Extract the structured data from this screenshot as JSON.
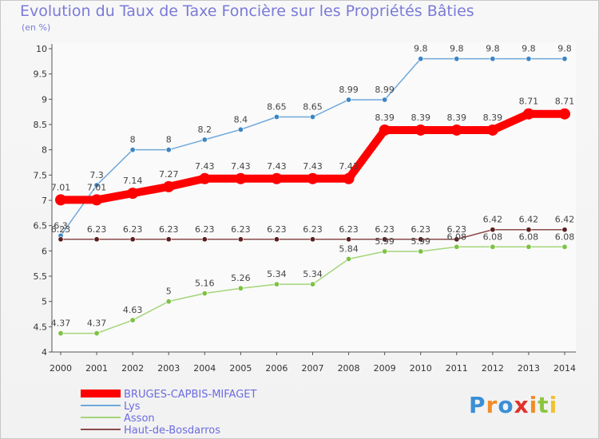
{
  "title": "Evolution du Taux de Taxe Foncière sur les Propriétés Bâties",
  "subtitle": "(en %)",
  "logo": {
    "text": "Proxiti",
    "colors": [
      "#3a8fd6",
      "#f28c28",
      "#3a8fd6",
      "#e0312a",
      "#f28c28",
      "#8cc63f",
      "#f2c12e"
    ]
  },
  "chart_data": {
    "type": "line",
    "title": "Evolution du Taux de Taxe Foncière sur les Propriétés Bâties",
    "ylabel": "(en %)",
    "xlabel": "",
    "ylim": [
      4,
      10
    ],
    "yticks": [
      "4",
      "4.5",
      "5",
      "5.5",
      "6",
      "6.5",
      "7",
      "7.5",
      "8",
      "8.5",
      "9",
      "9.5",
      "10"
    ],
    "x": [
      "2000",
      "2001",
      "2002",
      "2003",
      "2004",
      "2005",
      "2006",
      "2007",
      "2008",
      "2009",
      "2010",
      "2011",
      "2012",
      "2013",
      "2014"
    ],
    "series": [
      {
        "name": "BRUGES-CAPBIS-MIFAGET",
        "color": "#ff0000",
        "thick": true,
        "values": [
          7.01,
          7.01,
          7.14,
          7.27,
          7.43,
          7.43,
          7.43,
          7.43,
          7.43,
          8.39,
          8.39,
          8.39,
          8.39,
          8.71,
          8.71
        ],
        "labels": [
          "7.01",
          "7.01",
          "7.14",
          "7.27",
          "7.43",
          "7.43",
          "7.43",
          "7.43",
          "7.43",
          "8.39",
          "8.39",
          "8.39",
          "8.39",
          "8.71",
          "8.71"
        ]
      },
      {
        "name": "Lys",
        "color": "#6fa8dc",
        "dot": "#3d85c6",
        "values": [
          6.3,
          7.3,
          8,
          8,
          8.2,
          8.4,
          8.65,
          8.65,
          8.99,
          8.99,
          9.8,
          9.8,
          9.8,
          9.8,
          9.8
        ],
        "labels": [
          "6.3",
          "7.3",
          "8",
          "8",
          "8.2",
          "8.4",
          "8.65",
          "8.65",
          "8.99",
          "8.99",
          "9.8",
          "9.8",
          "9.8",
          "9.8",
          "9.8"
        ]
      },
      {
        "name": "Asson",
        "color": "#a4d67a",
        "dot": "#7cc242",
        "values": [
          4.37,
          4.37,
          4.63,
          5,
          5.16,
          5.26,
          5.34,
          5.34,
          5.84,
          5.99,
          5.99,
          6.08,
          6.08,
          6.08,
          6.08
        ],
        "labels": [
          "4.37",
          "4.37",
          "4.63",
          "5",
          "5.16",
          "5.26",
          "5.34",
          "5.34",
          "5.84",
          "5.99",
          "5.99",
          "6.08",
          "6.08",
          "6.08",
          "6.08"
        ]
      },
      {
        "name": "Haut-de-Bosdarros",
        "color": "#8b4a4a",
        "dot": "#5c1f1f",
        "values": [
          6.23,
          6.23,
          6.23,
          6.23,
          6.23,
          6.23,
          6.23,
          6.23,
          6.23,
          6.23,
          6.23,
          6.23,
          6.42,
          6.42,
          6.42
        ],
        "labels": [
          "6.23",
          "6.23",
          "6.23",
          "6.23",
          "6.23",
          "6.23",
          "6.23",
          "6.23",
          "6.23",
          "6.23",
          "6.23",
          "6.23",
          "6.42",
          "6.42",
          "6.42"
        ]
      }
    ],
    "legend_position": "bottom-left",
    "grid": false
  }
}
